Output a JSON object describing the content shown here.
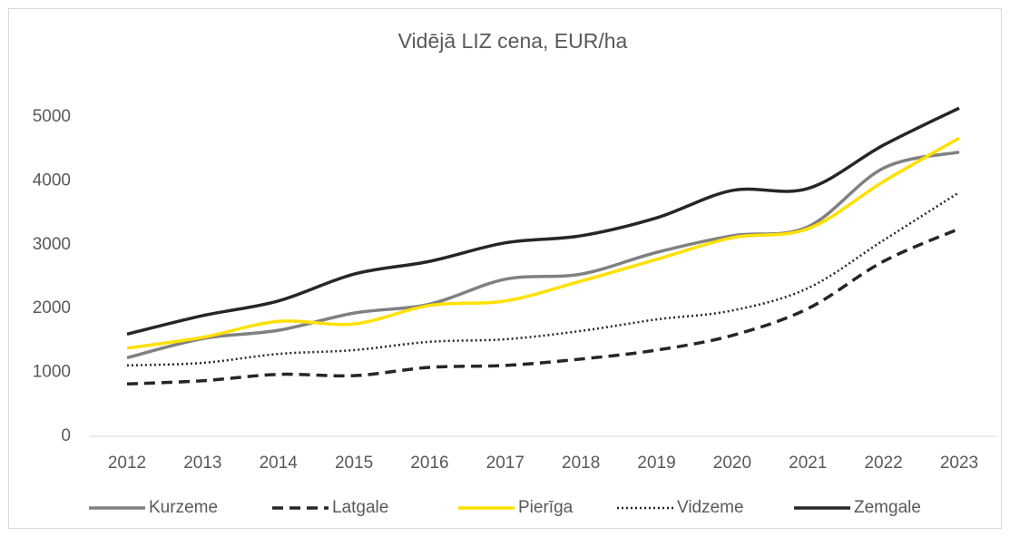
{
  "chart_data": {
    "type": "line",
    "title": "Vidējā LIZ cena, EUR/ha",
    "categories": [
      "2012",
      "2013",
      "2014",
      "2015",
      "2016",
      "2017",
      "2018",
      "2019",
      "2020",
      "2021",
      "2022",
      "2023"
    ],
    "ylim": [
      0,
      5000
    ],
    "yticks": [
      0,
      1000,
      2000,
      3000,
      4000,
      5000
    ],
    "grid": false,
    "legend": "bottom",
    "smooth": true,
    "series": [
      {
        "name": "Kurzeme",
        "color": "#808080",
        "dash": "solid",
        "values": [
          1230,
          1530,
          1660,
          1930,
          2070,
          2460,
          2540,
          2880,
          3140,
          3280,
          4200,
          4450
        ]
      },
      {
        "name": "Latgale",
        "color": "#262626",
        "dash": "dashed",
        "values": [
          820,
          870,
          970,
          950,
          1080,
          1110,
          1210,
          1350,
          1580,
          2000,
          2740,
          3250
        ]
      },
      {
        "name": "Pierīga",
        "color": "#ffe000",
        "dash": "solid",
        "values": [
          1380,
          1550,
          1800,
          1760,
          2050,
          2120,
          2430,
          2770,
          3110,
          3250,
          3990,
          4670
        ]
      },
      {
        "name": "Vidzeme",
        "color": "#262626",
        "dash": "dotted",
        "values": [
          1110,
          1150,
          1290,
          1350,
          1480,
          1520,
          1650,
          1830,
          1970,
          2320,
          3070,
          3820
        ]
      },
      {
        "name": "Zemgale",
        "color": "#262626",
        "dash": "solid",
        "values": [
          1600,
          1890,
          2120,
          2540,
          2740,
          3030,
          3140,
          3420,
          3850,
          3880,
          4560,
          5140
        ]
      }
    ]
  }
}
